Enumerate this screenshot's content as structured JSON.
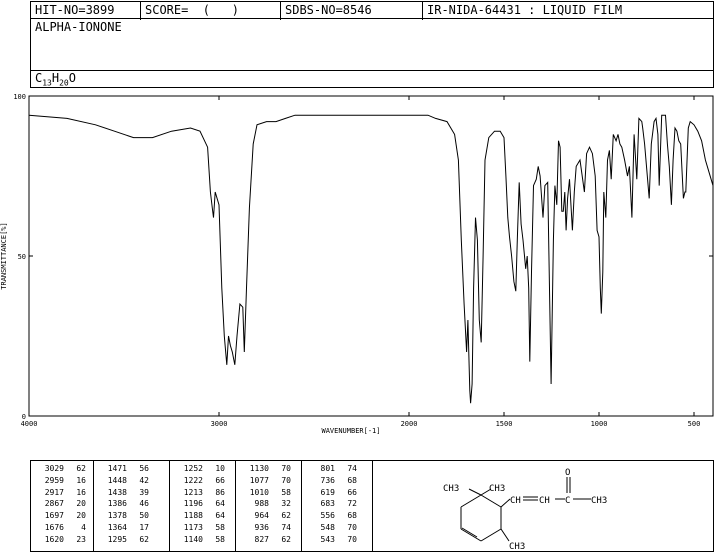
{
  "header": {
    "hit_no": "HIT-NO=3899",
    "score": "SCORE=  (   )",
    "sdbs_no": "SDBS-NO=8546",
    "source": "IR-NIDA-64431 : LIQUID FILM"
  },
  "compound": {
    "name": "ALPHA-IONONE",
    "formula_parts": [
      "C",
      "13",
      "H",
      "20",
      "O"
    ]
  },
  "chart_data": {
    "type": "line",
    "xlabel": "WAVENUMBER[-1]",
    "ylabel": "TRANSMITTANCE[%]",
    "xlim": [
      4000,
      400
    ],
    "ylim": [
      0,
      100
    ],
    "x_ticks": [
      4000,
      3000,
      2000,
      1500,
      1000,
      500
    ],
    "x_tick_labels": [
      "4000",
      "3000",
      "2000",
      "1500",
      "1000",
      "500"
    ],
    "y_ticks": [
      0,
      50,
      100
    ],
    "y_tick_labels": [
      "0",
      "50",
      "100"
    ],
    "series": [
      {
        "color": "#000000",
        "points": [
          [
            4000,
            94
          ],
          [
            3800,
            93
          ],
          [
            3650,
            91
          ],
          [
            3550,
            89
          ],
          [
            3450,
            87
          ],
          [
            3350,
            87
          ],
          [
            3250,
            89
          ],
          [
            3150,
            90
          ],
          [
            3100,
            89
          ],
          [
            3060,
            84
          ],
          [
            3045,
            70
          ],
          [
            3035,
            65
          ],
          [
            3029,
            62
          ],
          [
            3020,
            70
          ],
          [
            3000,
            66
          ],
          [
            2985,
            40
          ],
          [
            2972,
            25
          ],
          [
            2959,
            16
          ],
          [
            2950,
            25
          ],
          [
            2940,
            22
          ],
          [
            2930,
            20
          ],
          [
            2917,
            16
          ],
          [
            2905,
            25
          ],
          [
            2890,
            35
          ],
          [
            2875,
            34
          ],
          [
            2867,
            20
          ],
          [
            2855,
            40
          ],
          [
            2840,
            65
          ],
          [
            2820,
            85
          ],
          [
            2800,
            91
          ],
          [
            2750,
            92
          ],
          [
            2700,
            92
          ],
          [
            2650,
            93
          ],
          [
            2600,
            94
          ],
          [
            2500,
            94
          ],
          [
            2400,
            94
          ],
          [
            2300,
            94
          ],
          [
            2200,
            94
          ],
          [
            2100,
            94
          ],
          [
            2000,
            94
          ],
          [
            1900,
            94
          ],
          [
            1860,
            93
          ],
          [
            1800,
            92
          ],
          [
            1760,
            88
          ],
          [
            1740,
            80
          ],
          [
            1725,
            55
          ],
          [
            1710,
            35
          ],
          [
            1697,
            20
          ],
          [
            1690,
            30
          ],
          [
            1680,
            8
          ],
          [
            1676,
            4
          ],
          [
            1668,
            10
          ],
          [
            1660,
            40
          ],
          [
            1650,
            62
          ],
          [
            1640,
            55
          ],
          [
            1630,
            30
          ],
          [
            1620,
            23
          ],
          [
            1610,
            50
          ],
          [
            1600,
            80
          ],
          [
            1580,
            87
          ],
          [
            1550,
            89
          ],
          [
            1520,
            89
          ],
          [
            1500,
            87
          ],
          [
            1490,
            75
          ],
          [
            1480,
            62
          ],
          [
            1471,
            56
          ],
          [
            1460,
            50
          ],
          [
            1448,
            42
          ],
          [
            1438,
            39
          ],
          [
            1430,
            55
          ],
          [
            1420,
            73
          ],
          [
            1410,
            60
          ],
          [
            1400,
            55
          ],
          [
            1386,
            46
          ],
          [
            1378,
            50
          ],
          [
            1370,
            40
          ],
          [
            1364,
            17
          ],
          [
            1355,
            45
          ],
          [
            1345,
            72
          ],
          [
            1330,
            74
          ],
          [
            1320,
            78
          ],
          [
            1310,
            75
          ],
          [
            1295,
            62
          ],
          [
            1285,
            72
          ],
          [
            1270,
            73
          ],
          [
            1252,
            10
          ],
          [
            1240,
            55
          ],
          [
            1232,
            72
          ],
          [
            1222,
            66
          ],
          [
            1213,
            86
          ],
          [
            1205,
            84
          ],
          [
            1196,
            64
          ],
          [
            1188,
            64
          ],
          [
            1180,
            70
          ],
          [
            1173,
            58
          ],
          [
            1165,
            68
          ],
          [
            1155,
            74
          ],
          [
            1140,
            58
          ],
          [
            1130,
            70
          ],
          [
            1120,
            78
          ],
          [
            1100,
            80
          ],
          [
            1077,
            70
          ],
          [
            1065,
            82
          ],
          [
            1050,
            84
          ],
          [
            1035,
            82
          ],
          [
            1020,
            75
          ],
          [
            1010,
            58
          ],
          [
            1000,
            56
          ],
          [
            993,
            40
          ],
          [
            988,
            32
          ],
          [
            980,
            45
          ],
          [
            975,
            70
          ],
          [
            964,
            62
          ],
          [
            955,
            80
          ],
          [
            945,
            83
          ],
          [
            936,
            74
          ],
          [
            925,
            88
          ],
          [
            910,
            86
          ],
          [
            900,
            88
          ],
          [
            890,
            85
          ],
          [
            880,
            84
          ],
          [
            865,
            80
          ],
          [
            850,
            75
          ],
          [
            840,
            78
          ],
          [
            827,
            62
          ],
          [
            815,
            88
          ],
          [
            801,
            74
          ],
          [
            790,
            93
          ],
          [
            775,
            92
          ],
          [
            770,
            90
          ],
          [
            760,
            85
          ],
          [
            750,
            78
          ],
          [
            736,
            68
          ],
          [
            725,
            85
          ],
          [
            710,
            92
          ],
          [
            700,
            93
          ],
          [
            690,
            88
          ],
          [
            683,
            72
          ],
          [
            670,
            94
          ],
          [
            650,
            94
          ],
          [
            640,
            85
          ],
          [
            630,
            78
          ],
          [
            619,
            66
          ],
          [
            610,
            80
          ],
          [
            600,
            90
          ],
          [
            590,
            89
          ],
          [
            580,
            86
          ],
          [
            570,
            85
          ],
          [
            556,
            68
          ],
          [
            548,
            70
          ],
          [
            543,
            70
          ],
          [
            530,
            90
          ],
          [
            520,
            92
          ],
          [
            500,
            91
          ],
          [
            480,
            89
          ],
          [
            460,
            86
          ],
          [
            440,
            80
          ],
          [
            420,
            76
          ],
          [
            400,
            72
          ]
        ]
      }
    ]
  },
  "peak_table": {
    "columns": [
      [
        [
          "3029",
          "62"
        ],
        [
          "2959",
          "16"
        ],
        [
          "2917",
          "16"
        ],
        [
          "2867",
          "20"
        ],
        [
          "1697",
          "20"
        ],
        [
          "1676",
          "4"
        ],
        [
          "1620",
          "23"
        ]
      ],
      [
        [
          "1471",
          "56"
        ],
        [
          "1448",
          "42"
        ],
        [
          "1438",
          "39"
        ],
        [
          "1386",
          "46"
        ],
        [
          "1378",
          "50"
        ],
        [
          "1364",
          "17"
        ],
        [
          "1295",
          "62"
        ]
      ],
      [
        [
          "1252",
          "10"
        ],
        [
          "1222",
          "66"
        ],
        [
          "1213",
          "86"
        ],
        [
          "1196",
          "64"
        ],
        [
          "1188",
          "64"
        ],
        [
          "1173",
          "58"
        ],
        [
          "1140",
          "58"
        ]
      ],
      [
        [
          "1130",
          "70"
        ],
        [
          "1077",
          "70"
        ],
        [
          "1010",
          "58"
        ],
        [
          "988",
          "32"
        ],
        [
          "964",
          "62"
        ],
        [
          "936",
          "74"
        ],
        [
          "827",
          "62"
        ]
      ],
      [
        [
          "801",
          "74"
        ],
        [
          "736",
          "68"
        ],
        [
          "619",
          "66"
        ],
        [
          "683",
          "72"
        ],
        [
          "556",
          "68"
        ],
        [
          "548",
          "70"
        ],
        [
          "543",
          "70"
        ]
      ]
    ]
  },
  "structure": {
    "labels": {
      "ch3_top_left": "CH3",
      "ch3_top_right": "CH3",
      "oxygen": "O",
      "ch_a": "CH",
      "ch_b": "CH",
      "c_carbonyl": "C",
      "ch3_end": "CH3",
      "ch3_ring": "CH3"
    }
  }
}
